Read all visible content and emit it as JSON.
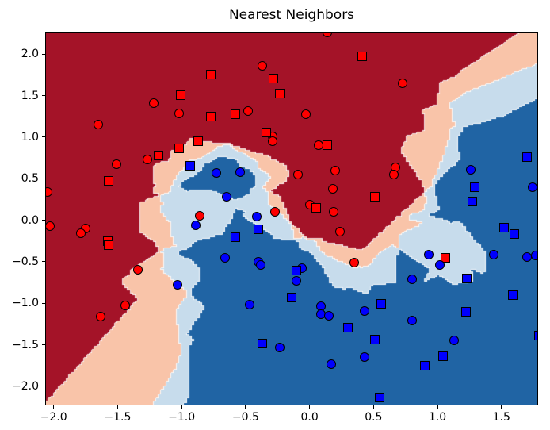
{
  "title": "Nearest Neighbors",
  "axes": {
    "x_ticks": [
      {
        "label": "−2.0",
        "value": -2.0
      },
      {
        "label": "−1.5",
        "value": -1.5
      },
      {
        "label": "−1.0",
        "value": -1.0
      },
      {
        "label": "−0.5",
        "value": -0.5
      },
      {
        "label": "0.0",
        "value": 0.0
      },
      {
        "label": "0.5",
        "value": 0.5
      },
      {
        "label": "1.0",
        "value": 1.0
      },
      {
        "label": "1.5",
        "value": 1.5
      }
    ],
    "y_ticks": [
      {
        "label": "2.0",
        "value": 2.0
      },
      {
        "label": "1.5",
        "value": 1.5
      },
      {
        "label": "1.0",
        "value": 1.0
      },
      {
        "label": "0.5",
        "value": 0.5
      },
      {
        "label": "0.0",
        "value": 0.0
      },
      {
        "label": "−0.5",
        "value": -0.5
      },
      {
        "label": "−1.0",
        "value": -1.0
      },
      {
        "label": "−1.5",
        "value": -1.5
      },
      {
        "label": "−2.0",
        "value": -2.0
      }
    ]
  },
  "chart_data": {
    "type": "scatter",
    "subtype": "knn-decision-boundary",
    "title": "Nearest Neighbors",
    "k_neighbors": 3,
    "xlim": [
      -2.06,
      1.78
    ],
    "ylim": [
      -2.22,
      2.26
    ],
    "mesh_step": 0.02,
    "grid": false,
    "region_colors": [
      "#a41328",
      "#f9c4a9",
      "#c7dcec",
      "#2064a4"
    ],
    "region_legend": [
      "all 3 neighbors red",
      "2 of 3 red",
      "2 of 3 blue",
      "all 3 neighbors blue"
    ],
    "boundary_color": "rgba(255,255,255,0.85)",
    "series": [
      {
        "name": "class-0-red-circles",
        "class": 0,
        "marker": "circle",
        "color": "#ff0000",
        "points": [
          [
            -1.65,
            1.15
          ],
          [
            -1.22,
            1.41
          ],
          [
            -1.02,
            1.29
          ],
          [
            -1.27,
            0.73
          ],
          [
            0.14,
            2.26
          ],
          [
            -0.37,
            1.86
          ],
          [
            -0.48,
            1.31
          ],
          [
            -0.03,
            1.28
          ],
          [
            -0.29,
            1.01
          ],
          [
            -0.29,
            0.95
          ],
          [
            0.07,
            0.9
          ],
          [
            0.73,
            1.65
          ],
          [
            -1.51,
            0.67
          ],
          [
            -2.05,
            0.34
          ],
          [
            -2.03,
            -0.07
          ],
          [
            -1.75,
            -0.1
          ],
          [
            -1.79,
            -0.16
          ],
          [
            -1.34,
            -0.6
          ],
          [
            -0.86,
            0.05
          ],
          [
            -0.09,
            0.55
          ],
          [
            0.2,
            0.6
          ],
          [
            0.18,
            0.38
          ],
          [
            0.0,
            0.19
          ],
          [
            0.19,
            0.1
          ],
          [
            0.24,
            -0.14
          ],
          [
            -0.27,
            0.1
          ],
          [
            0.35,
            -0.51
          ],
          [
            0.67,
            0.64
          ],
          [
            0.66,
            0.55
          ],
          [
            -1.63,
            -1.16
          ],
          [
            -1.44,
            -1.03
          ]
        ]
      },
      {
        "name": "class-0-red-squares",
        "class": 0,
        "marker": "square",
        "color": "#ff0000",
        "points": [
          [
            -1.01,
            1.51
          ],
          [
            -0.77,
            1.75
          ],
          [
            -0.77,
            1.25
          ],
          [
            -0.87,
            0.95
          ],
          [
            -1.02,
            0.87
          ],
          [
            -1.18,
            0.78
          ],
          [
            0.41,
            1.97
          ],
          [
            -0.28,
            1.71
          ],
          [
            -0.23,
            1.52
          ],
          [
            -0.58,
            1.28
          ],
          [
            -0.34,
            1.06
          ],
          [
            0.14,
            0.9
          ],
          [
            -1.57,
            0.47
          ],
          [
            -1.58,
            -0.25
          ],
          [
            -1.57,
            -0.3
          ],
          [
            0.05,
            0.15
          ],
          [
            0.51,
            0.28
          ],
          [
            1.06,
            -0.45
          ]
        ]
      },
      {
        "name": "class-1-blue-circles",
        "class": 1,
        "marker": "circle",
        "color": "#0000ff",
        "points": [
          [
            -0.73,
            0.57
          ],
          [
            -0.54,
            0.58
          ],
          [
            -0.65,
            0.28
          ],
          [
            -0.41,
            0.04
          ],
          [
            -0.89,
            -0.06
          ],
          [
            -0.66,
            -0.45
          ],
          [
            -0.4,
            -0.5
          ],
          [
            -0.38,
            -0.54
          ],
          [
            -0.06,
            -0.58
          ],
          [
            -0.1,
            -0.73
          ],
          [
            -1.03,
            -0.78
          ],
          [
            1.26,
            0.61
          ],
          [
            1.74,
            0.4
          ],
          [
            0.93,
            -0.41
          ],
          [
            1.02,
            -0.54
          ],
          [
            1.44,
            -0.41
          ],
          [
            1.7,
            -0.44
          ],
          [
            1.77,
            -0.42
          ],
          [
            0.8,
            -0.71
          ],
          [
            0.8,
            -1.21
          ],
          [
            1.13,
            -1.45
          ],
          [
            -0.47,
            -1.02
          ],
          [
            0.09,
            -1.04
          ],
          [
            0.09,
            -1.13
          ],
          [
            0.15,
            -1.15
          ],
          [
            0.43,
            -1.09
          ],
          [
            -0.23,
            -1.53
          ],
          [
            0.17,
            -1.73
          ],
          [
            0.43,
            -1.65
          ]
        ]
      },
      {
        "name": "class-1-blue-squares",
        "class": 1,
        "marker": "square",
        "color": "#0000ff",
        "points": [
          [
            -0.93,
            0.66
          ],
          [
            -0.4,
            -0.11
          ],
          [
            -0.58,
            -0.2
          ],
          [
            -0.1,
            -0.61
          ],
          [
            1.7,
            0.76
          ],
          [
            1.29,
            0.4
          ],
          [
            1.27,
            0.23
          ],
          [
            1.52,
            -0.09
          ],
          [
            1.6,
            -0.17
          ],
          [
            1.23,
            -0.7
          ],
          [
            1.59,
            -0.9
          ],
          [
            0.56,
            -1.01
          ],
          [
            1.22,
            -1.1
          ],
          [
            1.04,
            -1.64
          ],
          [
            0.9,
            -1.75
          ],
          [
            -0.14,
            -0.93
          ],
          [
            0.3,
            -1.29
          ],
          [
            0.51,
            -1.44
          ],
          [
            -0.37,
            -1.48
          ],
          [
            1.79,
            -1.39
          ],
          [
            0.55,
            -2.13
          ]
        ]
      }
    ]
  }
}
